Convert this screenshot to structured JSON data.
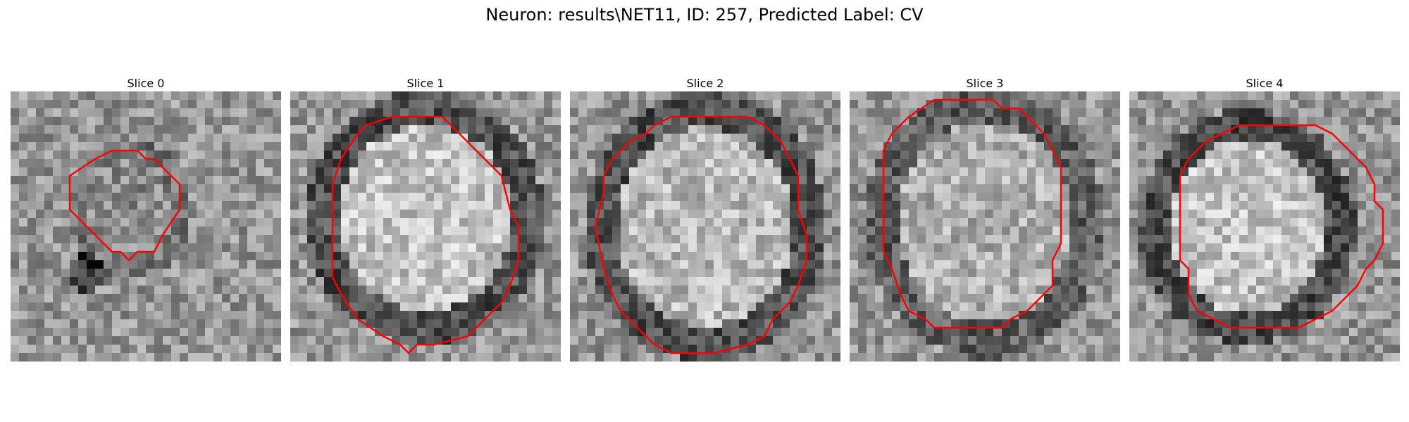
{
  "figure": {
    "title": "Neuron: results\\NET11, ID: 257, Predicted Label: CV"
  },
  "colors": {
    "contour": "#ff0000",
    "background": "#ffffff"
  },
  "panels": [
    {
      "title": "Slice 0"
    },
    {
      "title": "Slice 1"
    },
    {
      "title": "Slice 2"
    },
    {
      "title": "Slice 3"
    },
    {
      "title": "Slice 4"
    }
  ]
}
